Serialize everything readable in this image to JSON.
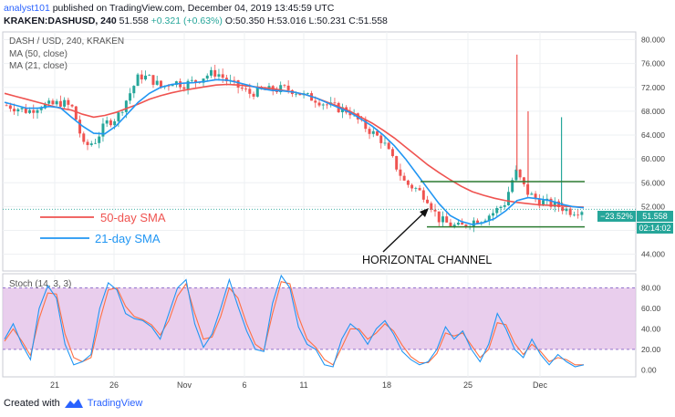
{
  "header": {
    "author": "analyst101",
    "published_text": "published on TradingView.com, December 04, 2019 13:45:59 UTC",
    "symbol_line": "KRAKEN:DASHUSD, 240",
    "last": "51.558",
    "change": "+0.321 (+0.63%)",
    "ohlc": "O:50.350 H:53.016 L:50.231 C:51.558"
  },
  "legend": {
    "title": "DASH / USD, 240, KRAKEN",
    "ma50": "MA (50, close)",
    "ma21": "MA (21, close)"
  },
  "annotations": {
    "sma50": "50-day SMA",
    "sma21": "21-day SMA",
    "channel": "HORIZONTAL CHANNEL"
  },
  "price_badges": {
    "pct": "−23.52%",
    "price": "51.558",
    "countdown": "02:14:02"
  },
  "stoch": {
    "label": "Stoch (14, 3, 3)",
    "upper": 80,
    "lower": 20
  },
  "footer": {
    "created_with": "Created with",
    "brand": "TradingView"
  },
  "colors": {
    "ma50": "#ef5350",
    "ma21": "#2196f3",
    "up": "#26a69a",
    "down": "#ef5350",
    "stoch_k": "#2196f3",
    "stoch_d": "#ff7043",
    "stoch_band": "#e1bee7",
    "channel": "#2e7d32"
  },
  "chart_data": [
    {
      "type": "candlestick",
      "title": "DASH / USD, 240, KRAKEN",
      "x_ticks": [
        "21",
        "26",
        "Nov",
        "6",
        "11",
        "18",
        "25",
        "Dec"
      ],
      "y_ticks": [
        "80.000",
        "76.000",
        "72.000",
        "68.000",
        "64.000",
        "60.000",
        "56.000",
        "52.000",
        "48.000",
        "44.000"
      ],
      "ylim": [
        41.5,
        81
      ],
      "price_path": [
        69,
        68.5,
        68,
        69,
        69,
        69.5,
        68.5,
        62,
        63,
        66,
        67,
        70.5,
        74,
        73.5,
        72,
        73,
        72.5,
        73,
        74,
        74.5,
        73,
        72,
        71,
        71.5,
        71.5,
        71.8,
        71.5,
        70.5,
        70,
        69,
        68.5,
        68,
        66,
        64.5,
        63,
        59.5,
        56,
        55,
        53.5,
        50,
        49,
        48.5,
        49.5,
        50,
        51,
        52.5,
        58,
        54.5,
        53,
        52.5,
        52,
        51.2,
        51.5
      ],
      "wick_spikes": [
        {
          "x_index": 46,
          "high": 77.5
        },
        {
          "x_index": 47,
          "high": 68
        },
        {
          "x_index": 50,
          "high": 67
        }
      ],
      "series": [
        {
          "name": "MA (50, close)",
          "values": [
            71,
            70.5,
            70,
            69.5,
            69,
            68.5,
            68.2,
            67.5,
            67,
            67.3,
            67.8,
            68.5,
            69.2,
            70,
            70.6,
            71.1,
            71.5,
            71.8,
            72.1,
            72.4,
            72.5,
            72.4,
            72.2,
            72,
            71.8,
            71.5,
            71.2,
            70.8,
            70.2,
            69.5,
            68.8,
            68,
            67,
            66,
            64.8,
            63.5,
            62,
            60.5,
            59,
            57.7,
            56.5,
            55.4,
            54.5,
            53.9,
            53.4,
            53,
            52.7,
            52.5,
            52.3,
            52.2,
            52.1,
            52,
            51.9
          ]
        },
        {
          "name": "MA (21, close)",
          "values": [
            69.5,
            69,
            68.5,
            68.5,
            68.8,
            68.6,
            67,
            65.5,
            64.3,
            64.2,
            65.5,
            67.5,
            69.5,
            71,
            72,
            72.5,
            72.7,
            72.8,
            73,
            73.3,
            73.2,
            72.8,
            72.3,
            71.8,
            71.5,
            71.4,
            71.2,
            70.8,
            70.2,
            69.4,
            68.6,
            67.8,
            66.7,
            65.5,
            64,
            62.2,
            60,
            57.5,
            55,
            52.5,
            50.5,
            49.5,
            49,
            49.3,
            50,
            51.3,
            53,
            53.5,
            53.3,
            53,
            52.4,
            52,
            51.8
          ]
        }
      ],
      "horizontal_channel": {
        "upper": 56.2,
        "lower": 48.6
      },
      "last_price": 51.558
    },
    {
      "type": "line",
      "title": "Stoch (14, 3, 3)",
      "y_ticks": [
        "80.00",
        "60.00",
        "40.00",
        "20.00",
        "0.00"
      ],
      "ylim": [
        -5,
        92
      ],
      "band": [
        20,
        80
      ],
      "series": [
        {
          "name": "%K",
          "values": [
            30,
            45,
            25,
            10,
            60,
            82,
            70,
            25,
            5,
            8,
            15,
            60,
            85,
            78,
            55,
            50,
            48,
            42,
            30,
            55,
            80,
            88,
            45,
            22,
            35,
            60,
            88,
            62,
            38,
            20,
            18,
            65,
            92,
            80,
            42,
            25,
            20,
            5,
            3,
            30,
            45,
            38,
            25,
            40,
            48,
            35,
            18,
            10,
            5,
            8,
            20,
            42,
            30,
            38,
            20,
            8,
            25,
            55,
            40,
            20,
            12,
            30,
            15,
            5,
            15,
            8,
            3,
            5
          ]
        },
        {
          "name": "%D",
          "values": [
            28,
            40,
            28,
            14,
            50,
            75,
            74,
            35,
            12,
            8,
            12,
            48,
            78,
            80,
            62,
            52,
            49,
            44,
            34,
            48,
            72,
            84,
            55,
            30,
            32,
            52,
            80,
            70,
            45,
            25,
            19,
            55,
            86,
            84,
            52,
            30,
            22,
            10,
            5,
            22,
            40,
            40,
            30,
            36,
            45,
            38,
            24,
            13,
            7,
            7,
            16,
            36,
            33,
            36,
            24,
            12,
            20,
            46,
            44,
            26,
            15,
            25,
            18,
            8,
            12,
            10,
            5,
            5
          ]
        }
      ]
    }
  ]
}
